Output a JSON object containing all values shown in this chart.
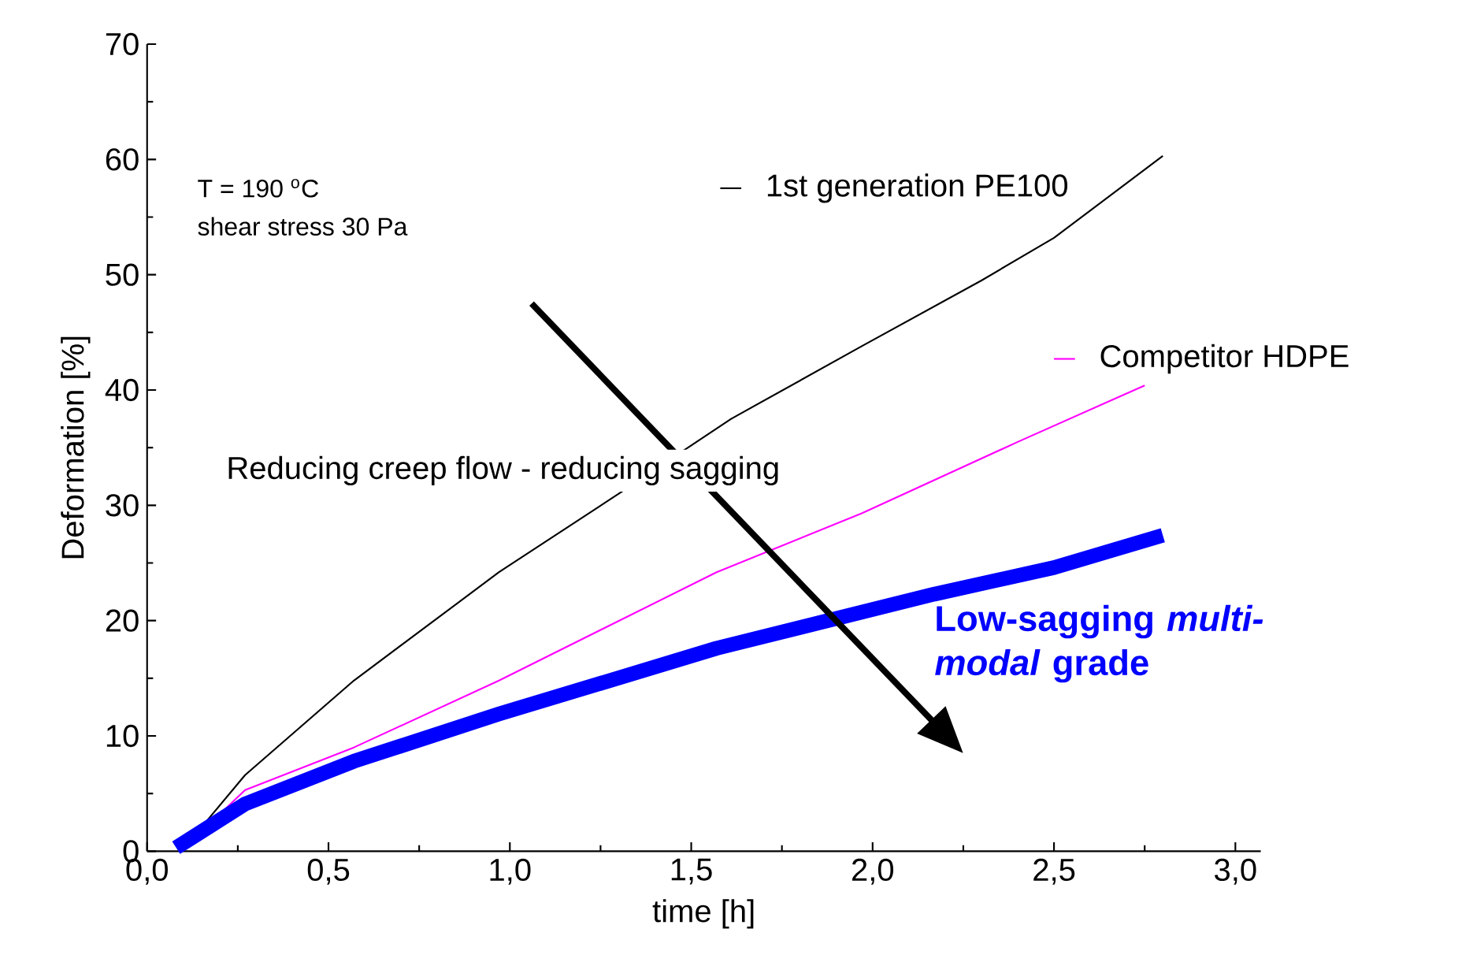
{
  "chart_data": {
    "type": "line",
    "xlabel": "time [h]",
    "ylabel": "Deformation [%]",
    "xlim": [
      0,
      3.07
    ],
    "ylim": [
      0,
      70
    ],
    "xticks": [
      {
        "value": 0,
        "label": "0,0"
      },
      {
        "value": 0.5,
        "label": "0,5"
      },
      {
        "value": 1,
        "label": "1,0"
      },
      {
        "value": 1.5,
        "label": "1,5"
      },
      {
        "value": 2,
        "label": "2,0"
      },
      {
        "value": 2.5,
        "label": "2,5"
      },
      {
        "value": 3,
        "label": "3,0"
      }
    ],
    "yticks": [
      0,
      10,
      20,
      30,
      40,
      50,
      60,
      70
    ],
    "legend": "top right",
    "grid": false,
    "annotations": [
      "T = 190 $^{o}$C",
      "shear stress 30 Pa",
      "Reducing creep flow - reducing sagging"
    ],
    "series": [
      {
        "name": "1st generation PE100",
        "color": "#000000",
        "x": [
          0.1,
          0.27,
          0.57,
          0.97,
          1.3,
          1.61,
          1.97,
          2.3,
          2.5,
          2.8
        ],
        "values": [
          0.2,
          6.6,
          14.8,
          24.2,
          31,
          37.5,
          43.8,
          49.5,
          53.2,
          60.3
        ]
      },
      {
        "name": "Competitor HDPE",
        "color": "#ff00ff",
        "x": [
          0.1,
          0.27,
          0.57,
          0.97,
          1.57,
          1.97,
          2.4,
          2.75
        ],
        "values": [
          0.2,
          5.3,
          9.0,
          14.8,
          24.2,
          29.3,
          35.5,
          40.4
        ]
      },
      {
        "name": "Low-sagging *multi-modal* grade",
        "color": "#0000ff",
        "x": [
          0.08,
          0.27,
          0.57,
          0.97,
          1.57,
          2.17,
          2.5,
          2.8
        ],
        "values": [
          0.3,
          4.1,
          7.8,
          11.9,
          17.6,
          22.3,
          24.6,
          27.4
        ]
      }
    ]
  }
}
